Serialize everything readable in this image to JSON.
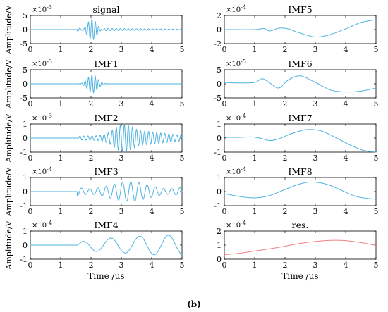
{
  "caption": "(b)",
  "colors": {
    "imf": "#4FB3E0",
    "residual": "#F08080",
    "axis": "#000000"
  },
  "chart_data": [
    {
      "type": "line",
      "title": "signal",
      "ylabel": "Amplitude/V",
      "xlabel": "",
      "multiplier": "×10",
      "exponent": "-3",
      "xlim": [
        0,
        5
      ],
      "ylim": [
        -5,
        5
      ],
      "xticks": [
        "0",
        "1",
        "2",
        "3",
        "4",
        "5"
      ],
      "yticks": [
        "5",
        "0",
        "-5"
      ],
      "series": [
        {
          "kind": "signal",
          "color": "imf"
        }
      ]
    },
    {
      "type": "line",
      "title": "IMF1",
      "ylabel": "Amplitude/V",
      "xlabel": "",
      "multiplier": "×10",
      "exponent": "-3",
      "xlim": [
        0,
        5
      ],
      "ylim": [
        -5,
        5
      ],
      "xticks": [
        "0",
        "1",
        "2",
        "3",
        "4",
        "5"
      ],
      "yticks": [
        "5",
        "0",
        "-5"
      ],
      "series": [
        {
          "kind": "imf1",
          "color": "imf"
        }
      ]
    },
    {
      "type": "line",
      "title": "IMF2",
      "ylabel": "Amplitude/V",
      "xlabel": "",
      "multiplier": "×10",
      "exponent": "-3",
      "xlim": [
        0,
        5
      ],
      "ylim": [
        -1,
        1
      ],
      "xticks": [
        "0",
        "1",
        "2",
        "3",
        "4",
        "5"
      ],
      "yticks": [
        "1",
        "0",
        "-1"
      ],
      "series": [
        {
          "kind": "imf2",
          "color": "imf"
        }
      ]
    },
    {
      "type": "line",
      "title": "IMF3",
      "ylabel": "Amplitude/V",
      "xlabel": "",
      "multiplier": "×10",
      "exponent": "-4",
      "xlim": [
        0,
        5
      ],
      "ylim": [
        -1,
        1
      ],
      "xticks": [
        "0",
        "1",
        "2",
        "3",
        "4",
        "5"
      ],
      "yticks": [
        "1",
        "0",
        "-1"
      ],
      "series": [
        {
          "kind": "imf3",
          "color": "imf"
        }
      ]
    },
    {
      "type": "line",
      "title": "IMF4",
      "ylabel": "Amplitude/V",
      "xlabel": "Time /μs",
      "multiplier": "×10",
      "exponent": "-4",
      "xlim": [
        0,
        5
      ],
      "ylim": [
        -1,
        1
      ],
      "xticks": [
        "0",
        "1",
        "2",
        "3",
        "4",
        "5"
      ],
      "yticks": [
        "1",
        "0",
        "-1"
      ],
      "series": [
        {
          "kind": "imf4",
          "color": "imf"
        }
      ]
    },
    {
      "type": "line",
      "title": "IMF5",
      "ylabel": "",
      "xlabel": "",
      "multiplier": "×10",
      "exponent": "-4",
      "xlim": [
        0,
        5
      ],
      "ylim": [
        -2,
        2
      ],
      "xticks": [
        "0",
        "1",
        "2",
        "3",
        "4",
        "5"
      ],
      "yticks": [
        "2",
        "0",
        "-2"
      ],
      "series": [
        {
          "kind": "imf5",
          "color": "imf",
          "points": [
            [
              0,
              0
            ],
            [
              1.0,
              0
            ],
            [
              1.3,
              0.15
            ],
            [
              1.5,
              -0.2
            ],
            [
              1.8,
              0.2
            ],
            [
              2.1,
              0.1
            ],
            [
              2.5,
              -0.5
            ],
            [
              3.0,
              -1.05
            ],
            [
              3.5,
              -0.7
            ],
            [
              4.0,
              0.1
            ],
            [
              4.5,
              1.0
            ],
            [
              5.0,
              1.4
            ]
          ]
        }
      ]
    },
    {
      "type": "line",
      "title": "IMF6",
      "ylabel": "",
      "xlabel": "",
      "multiplier": "×10",
      "exponent": "-5",
      "xlim": [
        0,
        5
      ],
      "ylim": [
        -5,
        5
      ],
      "xticks": [
        "0",
        "1",
        "2",
        "3",
        "4",
        "5"
      ],
      "yticks": [
        "5",
        "0",
        "-5"
      ],
      "series": [
        {
          "kind": "imf6",
          "color": "imf",
          "points": [
            [
              0,
              0.5
            ],
            [
              0.5,
              0.3
            ],
            [
              1.0,
              0.5
            ],
            [
              1.25,
              1.8
            ],
            [
              1.5,
              0.3
            ],
            [
              1.8,
              -1.5
            ],
            [
              2.1,
              1.3
            ],
            [
              2.5,
              2.8
            ],
            [
              3.0,
              0.5
            ],
            [
              3.5,
              -2.2
            ],
            [
              4.0,
              -2.9
            ],
            [
              4.5,
              -2.6
            ],
            [
              5.0,
              -1.5
            ]
          ]
        }
      ]
    },
    {
      "type": "line",
      "title": "IMF7",
      "ylabel": "",
      "xlabel": "",
      "multiplier": "×10",
      "exponent": "-4",
      "xlim": [
        0,
        5
      ],
      "ylim": [
        -1,
        1
      ],
      "xticks": [
        "0",
        "1",
        "2",
        "3",
        "4",
        "5"
      ],
      "yticks": [
        "1",
        "0",
        "-1"
      ],
      "series": [
        {
          "kind": "imf7",
          "color": "imf",
          "points": [
            [
              0,
              0.05
            ],
            [
              0.5,
              0.05
            ],
            [
              0.9,
              0.08
            ],
            [
              1.2,
              -0.02
            ],
            [
              1.5,
              -0.18
            ],
            [
              1.8,
              -0.05
            ],
            [
              2.2,
              0.3
            ],
            [
              2.7,
              0.6
            ],
            [
              3.2,
              0.5
            ],
            [
              3.7,
              0.0
            ],
            [
              4.2,
              -0.55
            ],
            [
              4.6,
              -0.88
            ],
            [
              5.0,
              -1.0
            ]
          ]
        }
      ]
    },
    {
      "type": "line",
      "title": "IMF8",
      "ylabel": "",
      "xlabel": "",
      "multiplier": "×10",
      "exponent": "-4",
      "xlim": [
        0,
        5
      ],
      "ylim": [
        -1,
        1
      ],
      "xticks": [
        "0",
        "1",
        "2",
        "3",
        "4",
        "5"
      ],
      "yticks": [
        "1",
        "0",
        "-1"
      ],
      "series": [
        {
          "kind": "imf8",
          "color": "imf",
          "points": [
            [
              0,
              -0.15
            ],
            [
              0.5,
              -0.35
            ],
            [
              1.0,
              -0.45
            ],
            [
              1.5,
              -0.28
            ],
            [
              2.0,
              0.15
            ],
            [
              2.5,
              0.55
            ],
            [
              2.9,
              0.68
            ],
            [
              3.4,
              0.5
            ],
            [
              3.9,
              0.05
            ],
            [
              4.4,
              -0.38
            ],
            [
              5.0,
              -0.55
            ]
          ]
        }
      ]
    },
    {
      "type": "line",
      "title": "res.",
      "ylabel": "",
      "xlabel": "Time /μs",
      "multiplier": "×10",
      "exponent": "-4",
      "xlim": [
        0,
        5
      ],
      "ylim": [
        0,
        2
      ],
      "xticks": [
        "0",
        "1",
        "2",
        "3",
        "4",
        "5"
      ],
      "yticks": [
        "2",
        "1",
        "0"
      ],
      "series": [
        {
          "kind": "residual",
          "color": "residual",
          "points": [
            [
              0,
              0.32
            ],
            [
              0.5,
              0.42
            ],
            [
              1.0,
              0.58
            ],
            [
              1.5,
              0.74
            ],
            [
              2.0,
              0.92
            ],
            [
              2.5,
              1.12
            ],
            [
              3.0,
              1.26
            ],
            [
              3.5,
              1.34
            ],
            [
              4.0,
              1.32
            ],
            [
              4.5,
              1.18
            ],
            [
              5.0,
              0.98
            ]
          ]
        }
      ]
    }
  ]
}
